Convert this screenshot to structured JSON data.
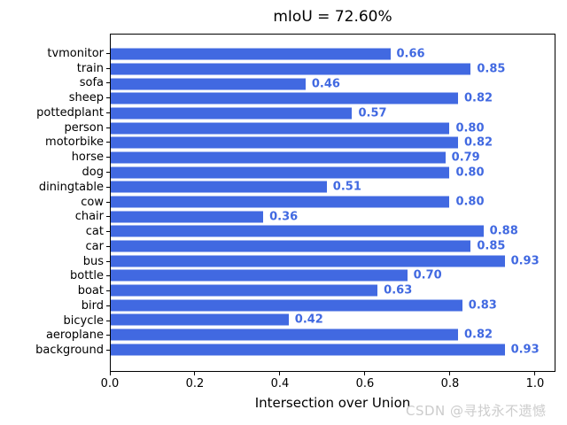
{
  "chart_data": {
    "type": "bar",
    "orientation": "horizontal",
    "title": "mIoU = 72.60%",
    "xlabel": "Intersection over Union",
    "ylabel": "",
    "categories_order": "top-to-bottom",
    "categories": [
      "tvmonitor",
      "train",
      "sofa",
      "sheep",
      "pottedplant",
      "person",
      "motorbike",
      "horse",
      "dog",
      "diningtable",
      "cow",
      "chair",
      "cat",
      "car",
      "bus",
      "bottle",
      "boat",
      "bird",
      "bicycle",
      "aeroplane",
      "background"
    ],
    "values": [
      0.66,
      0.85,
      0.46,
      0.82,
      0.57,
      0.8,
      0.82,
      0.79,
      0.8,
      0.51,
      0.8,
      0.36,
      0.88,
      0.85,
      0.93,
      0.7,
      0.63,
      0.83,
      0.42,
      0.82,
      0.93
    ],
    "value_labels": [
      "0.66",
      "0.85",
      "0.46",
      "0.82",
      "0.57",
      "0.80",
      "0.82",
      "0.79",
      "0.80",
      "0.51",
      "0.80",
      "0.36",
      "0.88",
      "0.85",
      "0.93",
      "0.70",
      "0.63",
      "0.83",
      "0.42",
      "0.82",
      "0.93"
    ],
    "x_ticks": [
      "0.0",
      "0.2",
      "0.4",
      "0.6",
      "0.8",
      "1.0"
    ],
    "xlim": [
      0,
      1.048
    ],
    "grid": false,
    "legend": null,
    "bar_color": "#4169e1",
    "value_label_color": "#4169e1"
  },
  "watermark": "CSDN @寻找永不遗憾",
  "colors": {
    "bar": "#4169e1",
    "value_label": "#4169e1",
    "watermark": "#cccccc",
    "axis": "#000000",
    "background": "#ffffff"
  }
}
